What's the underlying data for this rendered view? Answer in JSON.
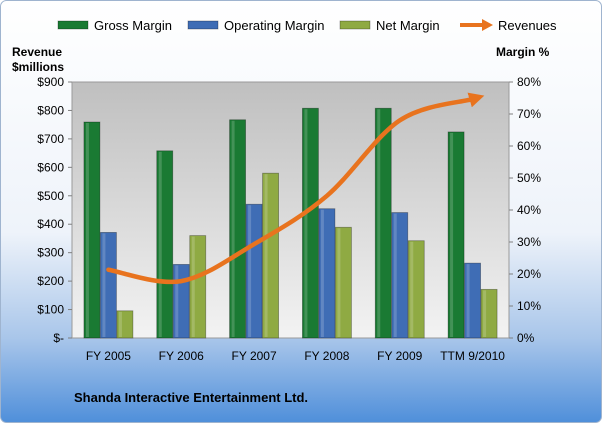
{
  "chart_data": {
    "type": "bar",
    "categories": [
      "FY 2005",
      "FY 2006",
      "FY 2007",
      "FY 2008",
      "FY 2009",
      "TTM 9/2010"
    ],
    "series": [
      {
        "name": "Gross Margin",
        "axis": "right",
        "unit": "%",
        "color": "#1a7a33",
        "values": [
          67.5,
          58.5,
          68.2,
          71.8,
          71.8,
          64.4
        ]
      },
      {
        "name": "Operating Margin",
        "axis": "right",
        "unit": "%",
        "color": "#3f6db5",
        "values": [
          33,
          23,
          41.8,
          40.4,
          39.2,
          23.4
        ]
      },
      {
        "name": "Net Margin",
        "axis": "right",
        "unit": "%",
        "color": "#8faa43",
        "values": [
          8.5,
          32,
          51.5,
          34.6,
          30.4,
          15.2
        ]
      },
      {
        "name": "Revenues",
        "type": "line",
        "axis": "left",
        "unit": "$ millions",
        "color": "#e8731e",
        "values": [
          240,
          200,
          330,
          500,
          765,
          840
        ]
      }
    ],
    "left_axis": {
      "title_line1": "Revenue",
      "title_line2": "$millions",
      "range": [
        0,
        900
      ],
      "ticks": [
        "$-",
        "$100",
        "$200",
        "$300",
        "$400",
        "$500",
        "$600",
        "$700",
        "$800",
        "$900"
      ]
    },
    "right_axis": {
      "title": "Margin %",
      "range": [
        0,
        80
      ],
      "ticks": [
        "0%",
        "10%",
        "20%",
        "30%",
        "40%",
        "50%",
        "60%",
        "70%",
        "80%"
      ]
    },
    "legend_position": "top",
    "grid": false,
    "footer": "Shanda Interactive Entertainment Ltd."
  }
}
